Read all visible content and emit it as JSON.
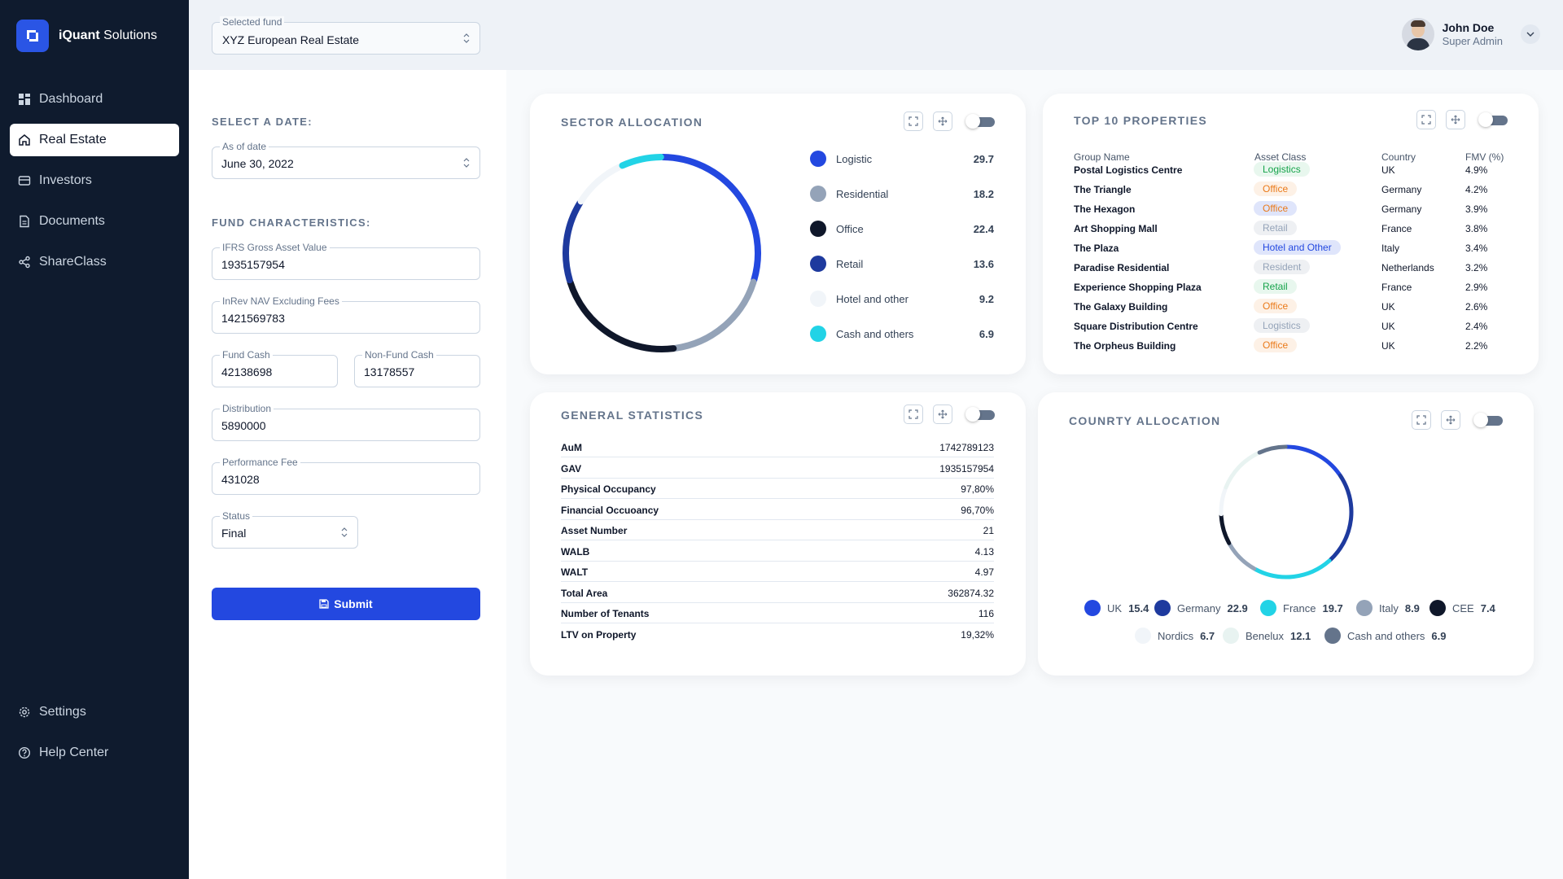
{
  "brand": {
    "name_bold": "iQuant",
    "name_light": "Solutions"
  },
  "sidebar": {
    "items": [
      {
        "label": "Dashboard",
        "icon": "dashboard-icon"
      },
      {
        "label": "Real Estate",
        "icon": "home-icon",
        "active": true
      },
      {
        "label": "Investors",
        "icon": "card-icon"
      },
      {
        "label": "Documents",
        "icon": "document-icon"
      },
      {
        "label": "ShareClass",
        "icon": "share-icon"
      }
    ],
    "bottom_items": [
      {
        "label": "Settings",
        "icon": "gear-icon"
      },
      {
        "label": "Help Center",
        "icon": "help-icon"
      }
    ]
  },
  "header": {
    "fund_label": "Selected fund",
    "fund_value": "XYZ European Real Estate",
    "user_name": "John Doe",
    "user_role": "Super Admin"
  },
  "form": {
    "date_title": "SELECT A DATE:",
    "date_label": "As of date",
    "date_value": "June 30, 2022",
    "characteristics_title": "FUND CHARACTERISTICS:",
    "ifrs_label": "IFRS Gross Asset Value",
    "ifrs_value": "1935157954",
    "inrev_label": "InRev NAV Excluding Fees",
    "inrev_value": "1421569783",
    "fund_cash_label": "Fund Cash",
    "fund_cash_value": "42138698",
    "nonfund_cash_label": "Non-Fund Cash",
    "nonfund_cash_value": "13178557",
    "distribution_label": "Distribution",
    "distribution_value": "5890000",
    "perf_fee_label": "Performance Fee",
    "perf_fee_value": "431028",
    "status_label": "Status",
    "status_value": "Final",
    "submit_label": "Submit"
  },
  "sector": {
    "title": "SECTOR ALLOCATION",
    "items": [
      {
        "label": "Logistic",
        "value": "29.7",
        "color": "#2348e0"
      },
      {
        "label": "Residential",
        "value": "18.2",
        "color": "#94a3b8"
      },
      {
        "label": "Office",
        "value": "22.4",
        "color": "#0f172a"
      },
      {
        "label": "Retail",
        "value": "13.6",
        "color": "#1e3a9e"
      },
      {
        "label": "Hotel and other",
        "value": "9.2",
        "color": "#f1f5f9"
      },
      {
        "label": "Cash and others",
        "value": "6.9",
        "color": "#22d3e6"
      }
    ]
  },
  "properties": {
    "title": "TOP 10 PROPERTIES",
    "headers": {
      "name": "Group Name",
      "asset": "Asset Class",
      "country": "Country",
      "fmv": "FMV (%)"
    },
    "rows": [
      {
        "name": "Postal Logistics Centre",
        "asset": "Logistics",
        "country": "UK",
        "fmv": "4.9%",
        "badge_bg": "#e8f7ee",
        "badge_fg": "#16a34a"
      },
      {
        "name": "The Triangle",
        "asset": "Office",
        "country": "Germany",
        "fmv": "4.2%",
        "badge_bg": "#fdf1e6",
        "badge_fg": "#ea7a1a"
      },
      {
        "name": "The Hexagon",
        "asset": "Office",
        "country": "Germany",
        "fmv": "3.9%",
        "badge_bg": "#dfe5fb",
        "badge_fg": "#ea7a1a"
      },
      {
        "name": "Art Shopping Mall",
        "asset": "Retail",
        "country": "France",
        "fmv": "3.8%",
        "badge_bg": "#eef0f3",
        "badge_fg": "#94a3b8"
      },
      {
        "name": "The Plaza",
        "asset": "Hotel and Other",
        "country": "Italy",
        "fmv": "3.4%",
        "badge_bg": "#dfe5fb",
        "badge_fg": "#2348e0"
      },
      {
        "name": "Paradise Residential",
        "asset": "Resident",
        "country": "Netherlands",
        "fmv": "3.2%",
        "badge_bg": "#eef0f3",
        "badge_fg": "#94a3b8"
      },
      {
        "name": "Experience Shopping Plaza",
        "asset": "Retail",
        "country": "France",
        "fmv": "2.9%",
        "badge_bg": "#e8f7ee",
        "badge_fg": "#16a34a"
      },
      {
        "name": "The Galaxy Building",
        "asset": "Office",
        "country": "UK",
        "fmv": "2.6%",
        "badge_bg": "#fdf1e6",
        "badge_fg": "#ea7a1a"
      },
      {
        "name": "Square Distribution Centre",
        "asset": "Logistics",
        "country": "UK",
        "fmv": "2.4%",
        "badge_bg": "#eef0f3",
        "badge_fg": "#94a3b8"
      },
      {
        "name": "The Orpheus Building",
        "asset": "Office",
        "country": "UK",
        "fmv": "2.2%",
        "badge_bg": "#fdf1e6",
        "badge_fg": "#ea7a1a"
      }
    ]
  },
  "stats": {
    "title": "GENERAL STATISTICS",
    "rows": [
      {
        "label": "AuM",
        "value": "1742789123"
      },
      {
        "label": "GAV",
        "value": "1935157954"
      },
      {
        "label": "Physical Occupancy",
        "value": "97,80%"
      },
      {
        "label": "Financial Occuoancy",
        "value": "96,70%"
      },
      {
        "label": "Asset Number",
        "value": "21"
      },
      {
        "label": "WALB",
        "value": "4.13"
      },
      {
        "label": "WALT",
        "value": "4.97"
      },
      {
        "label": "Total Area",
        "value": "362874.32"
      },
      {
        "label": "Number of Tenants",
        "value": "116"
      },
      {
        "label": "LTV on Property",
        "value": "19,32%"
      }
    ]
  },
  "country": {
    "title": "COUNRTY ALLOCATION",
    "items": [
      {
        "label": "UK",
        "value": "15.4",
        "color": "#2348e0"
      },
      {
        "label": "Germany",
        "value": "22.9",
        "color": "#1e3a9e"
      },
      {
        "label": "France",
        "value": "19.7",
        "color": "#22d3e6"
      },
      {
        "label": "Italy",
        "value": "8.9",
        "color": "#94a3b8"
      },
      {
        "label": "CEE",
        "value": "7.4",
        "color": "#0f172a"
      },
      {
        "label": "Nordics",
        "value": "6.7",
        "color": "#f1f5f9"
      },
      {
        "label": "Benelux",
        "value": "12.1",
        "color": "#e8f3f1"
      },
      {
        "label": "Cash and others",
        "value": "6.9",
        "color": "#64748b"
      }
    ]
  }
}
